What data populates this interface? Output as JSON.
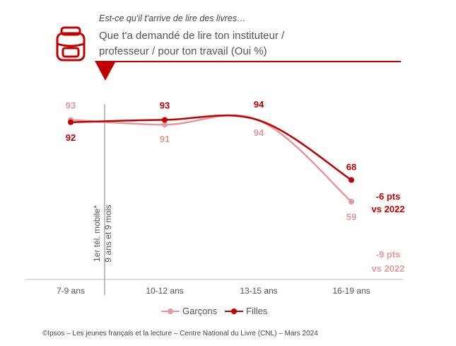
{
  "header": {
    "kicker": "Est-ce qu'il t'arrive de lire des livres…",
    "question_line1": "Que t'a demandé de lire ton instituteur /",
    "question_line2": "professeur / pour ton travail (Oui %)",
    "icon": "backpack-icon"
  },
  "annotation": {
    "line1": "1er  tél. mobile*",
    "line2": "9 ans et 9 mois"
  },
  "chart_data": {
    "type": "line",
    "categories": [
      "7-9 ans",
      "10-12 ans",
      "13-15 ans",
      "16-19 ans"
    ],
    "series": [
      {
        "name": "Garçons",
        "values": [
          93,
          91,
          94,
          59
        ],
        "color": "#e3999d"
      },
      {
        "name": "Filles",
        "values": [
          92,
          93,
          94,
          68
        ],
        "color": "#c00000"
      }
    ],
    "value_labels": {
      "Garçons": [
        "93",
        "91",
        "94",
        "59"
      ],
      "Filles": [
        "92",
        "93",
        "94",
        "68"
      ]
    },
    "deltas": {
      "Filles": {
        "line1": "-6 pts",
        "line2": "vs 2022"
      },
      "Garçons": {
        "line1": "-9 pts",
        "line2": "vs 2022"
      }
    },
    "grid": false,
    "legend_position": "bottom-center"
  },
  "legend": {
    "garcons": "Garçons",
    "filles": "Filles"
  },
  "footer": "©Ipsos – Les jeunes français et la lecture – Centre National du Livre (CNL) – Mars 2024",
  "colors": {
    "accent": "#c00000",
    "light": "#e3999d",
    "axis": "#bfbfbf",
    "text": "#555555"
  }
}
